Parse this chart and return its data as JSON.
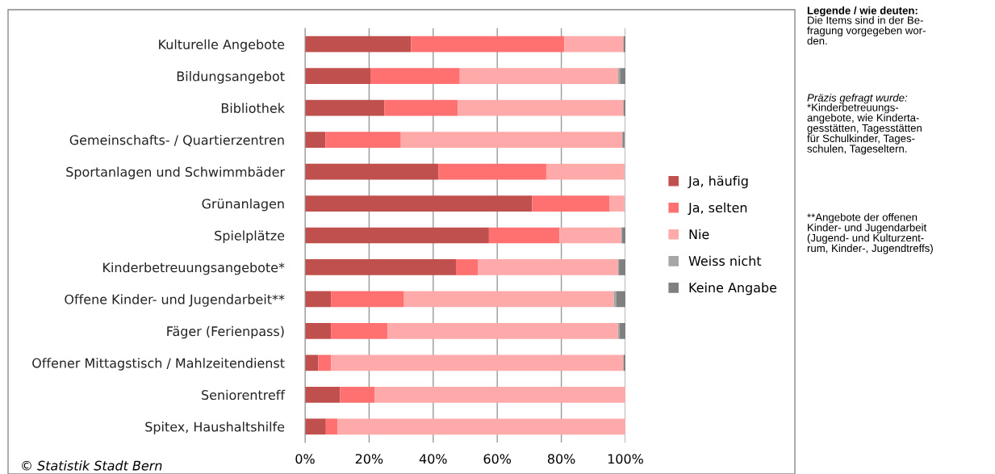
{
  "chart_data": {
    "type": "bar",
    "orientation": "horizontal",
    "stacked": true,
    "categories": [
      "Kulturelle Angebote",
      "Bildungsangebot",
      "Bibliothek",
      "Gemeinschafts- / Quartierzentren",
      "Sportanlagen und Schwimmbäder",
      "Grünanlagen",
      "Spielplätze",
      "Kinderbetreuungsangebote*",
      "Offene Kinder- und Jugendarbeit**",
      "Fäger (Ferienpass)",
      "Offener Mittagstisch / Mahlzeitendienst",
      "Seniorentreff",
      "Spitex, Haushaltshilfe"
    ],
    "series": [
      {
        "name": "Ja, häufig",
        "color": "#c0504d",
        "values": [
          33.1,
          20.4,
          24.8,
          6.4,
          41.6,
          70.9,
          57.4,
          47.1,
          8.1,
          8.1,
          4.1,
          10.9,
          6.5
        ]
      },
      {
        "name": "Ja, selten",
        "color": "#ff7070",
        "values": [
          47.8,
          27.9,
          22.9,
          23.5,
          33.7,
          24.2,
          22.0,
          6.8,
          22.8,
          17.7,
          4.0,
          10.9,
          3.6
        ]
      },
      {
        "name": "Nie",
        "color": "#ffaaaa",
        "values": [
          18.5,
          49.4,
          51.7,
          69.2,
          24.4,
          4.6,
          19.3,
          43.8,
          65.5,
          71.9,
          91.3,
          78.2,
          89.9
        ]
      },
      {
        "name": "Weiss nicht",
        "color": "#a6a6a6",
        "values": [
          0,
          0.6,
          0,
          null,
          0,
          0,
          0.3,
          0.3,
          0.7,
          0.5,
          0,
          0,
          0
        ]
      },
      {
        "name": "Keine Angabe",
        "color": "#808080",
        "values": [
          0.6,
          1.7,
          0.6,
          0.6,
          null,
          null,
          1.0,
          2.0,
          2.9,
          1.8,
          0.6,
          0,
          0
        ]
      }
    ],
    "xlim": [
      0,
      100
    ],
    "xticks": [
      {
        "value": 0,
        "label": "0%"
      },
      {
        "value": 20,
        "label": "20%"
      },
      {
        "value": 40,
        "label": "40%"
      },
      {
        "value": 60,
        "label": "60%"
      },
      {
        "value": 80,
        "label": "80%"
      },
      {
        "value": 100,
        "label": "100%"
      }
    ],
    "grid": "x",
    "legend": "right",
    "annotations": [
      "Legende / wie deuten:",
      "Die Items sind in der Be-\nfragung vorgegeben wor-\nden.",
      "Präzis gefragt wurde:",
      "*Kinderbetreuungs-\nangebote, wie Kinderta-\ngesstätten, Tagesstätten\nfür Schulkinder, Tages-\nschulen, Tageseltern.",
      "**Angebote der offenen\nKinder- und Jugendarbeit\n(Jugend- und Kulturzent-\nrum, Kinder-, Jugendtreffs)",
      "© Statistik Stadt Bern"
    ]
  }
}
